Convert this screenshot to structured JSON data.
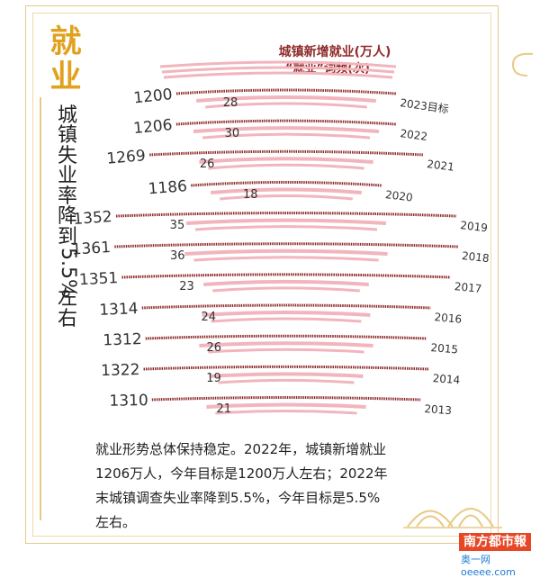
{
  "sidebar": {
    "title": "就业",
    "subtitle": "城镇失业率降到5.5%左右"
  },
  "chart_data": {
    "type": "bar",
    "title": "城镇新增就业(万人)",
    "subtitle": "“就业”词频(次)",
    "categories": [
      "2023目标",
      "2022",
      "2021",
      "2020",
      "2019",
      "2018",
      "2017",
      "2016",
      "2015",
      "2014",
      "2013"
    ],
    "series": [
      {
        "name": "城镇新增就业(万人)",
        "values": [
          1200,
          1206,
          1269,
          1186,
          1352,
          1361,
          1351,
          1314,
          1312,
          1322,
          1310
        ]
      },
      {
        "name": "“就业”词频(次)",
        "values": [
          28,
          30,
          26,
          18,
          35,
          36,
          23,
          24,
          26,
          19,
          21
        ]
      }
    ]
  },
  "caption": "就业形势总体保持稳定。2022年，城镇新增就业1206万人，今年目标是1200万人左右；2022年末城镇调查失业率降到5.5%，今年目标是5.5%左右。",
  "logo": {
    "name": "南方都市報",
    "sub": "奥一网oeeee.com"
  },
  "colors": {
    "gold": "#e0a21e",
    "stripe_dark": "#8e2a2a",
    "stripe_pink": "#f2b5bd",
    "frame": "#e6c98c"
  }
}
